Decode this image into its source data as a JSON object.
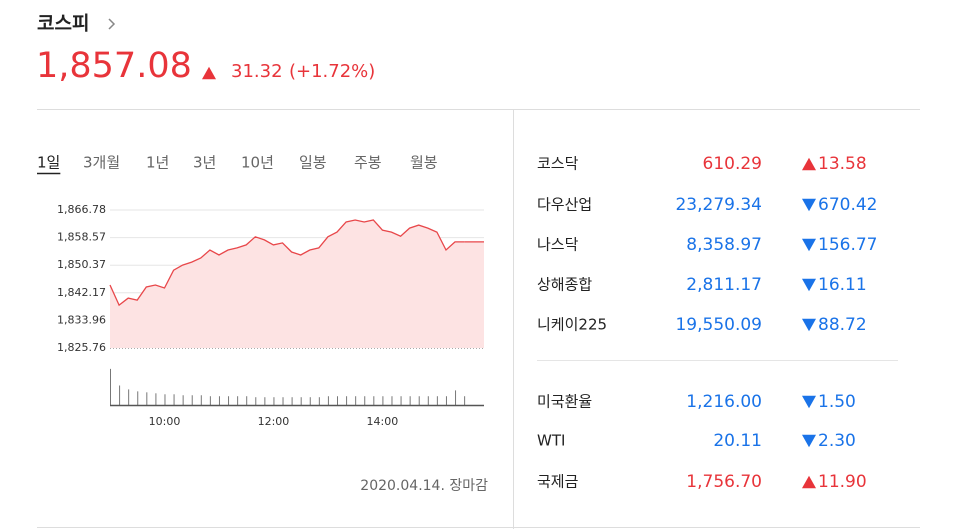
{
  "header": {
    "title": "코스피",
    "value": "1,857.08",
    "change": "31.32",
    "change_pct": "(+1.72%)",
    "direction": "up"
  },
  "tabs": {
    "items": [
      "1일",
      "3개월",
      "1년",
      "3년",
      "10년",
      "일봉",
      "주봉",
      "월봉"
    ],
    "active": 0
  },
  "chart_data": {
    "type": "area",
    "color": "#e8474a",
    "x": [
      "09:00",
      "09:10",
      "09:20",
      "09:30",
      "09:40",
      "09:50",
      "10:00",
      "10:10",
      "10:20",
      "10:30",
      "10:40",
      "10:50",
      "11:00",
      "11:10",
      "11:20",
      "11:30",
      "11:40",
      "11:50",
      "12:00",
      "12:10",
      "12:20",
      "12:30",
      "12:40",
      "12:50",
      "13:00",
      "13:10",
      "13:20",
      "13:30",
      "13:40",
      "13:50",
      "14:00",
      "14:10",
      "14:20",
      "14:30",
      "14:40",
      "14:50",
      "15:00",
      "15:10",
      "15:20",
      "15:30"
    ],
    "values": [
      1844.5,
      1838.5,
      1840.6,
      1840.0,
      1843.9,
      1844.5,
      1843.6,
      1848.9,
      1850.4,
      1851.3,
      1852.5,
      1854.9,
      1853.4,
      1854.9,
      1855.5,
      1856.4,
      1858.8,
      1857.9,
      1856.4,
      1857.0,
      1854.3,
      1853.4,
      1854.9,
      1855.5,
      1858.8,
      1860.2,
      1863.2,
      1863.8,
      1863.2,
      1863.8,
      1860.8,
      1860.2,
      1859.0,
      1861.4,
      1862.3,
      1861.4,
      1860.2,
      1854.9,
      1857.3,
      1857.3
    ],
    "volume": [
      37,
      20,
      16,
      14,
      13,
      12,
      11,
      11,
      10,
      10,
      10,
      9,
      9,
      9,
      9,
      9,
      8,
      8,
      8,
      8,
      8,
      8,
      8,
      8,
      9,
      9,
      9,
      9,
      9,
      9,
      9,
      9,
      9,
      9,
      9,
      9,
      9,
      9,
      15,
      9
    ],
    "volume_ylim": [
      0,
      40
    ],
    "ylim": [
      1825.76,
      1866.78
    ],
    "yticks": [
      {
        "value": 1825.76,
        "label": "1,825.76"
      },
      {
        "value": 1833.96,
        "label": "1,833.96"
      },
      {
        "value": 1842.17,
        "label": "1,842.17"
      },
      {
        "value": 1850.37,
        "label": "1,850.37"
      },
      {
        "value": 1858.57,
        "label": "1,858.57"
      },
      {
        "value": 1866.78,
        "label": "1,866.78"
      }
    ],
    "xticks": [
      "10:00",
      "12:00",
      "14:00"
    ],
    "grid": true
  },
  "footer": "2020.04.14. 장마감",
  "markets": {
    "groups": [
      [
        {
          "name": "코스닥",
          "value": "610.29",
          "change": "13.58",
          "direction": "up"
        },
        {
          "name": "다우산업",
          "value": "23,279.34",
          "change": "670.42",
          "direction": "down"
        },
        {
          "name": "나스닥",
          "value": "8,358.97",
          "change": "156.77",
          "direction": "down"
        },
        {
          "name": "상해종합",
          "value": "2,811.17",
          "change": "16.11",
          "direction": "down"
        },
        {
          "name": "니케이225",
          "value": "19,550.09",
          "change": "88.72",
          "direction": "down"
        }
      ],
      [
        {
          "name": "미국환율",
          "value": "1,216.00",
          "change": "1.50",
          "direction": "down"
        },
        {
          "name": "WTI",
          "value": "20.11",
          "change": "2.30",
          "direction": "down"
        },
        {
          "name": "국제금",
          "value": "1,756.70",
          "change": "11.90",
          "direction": "up"
        }
      ]
    ]
  }
}
